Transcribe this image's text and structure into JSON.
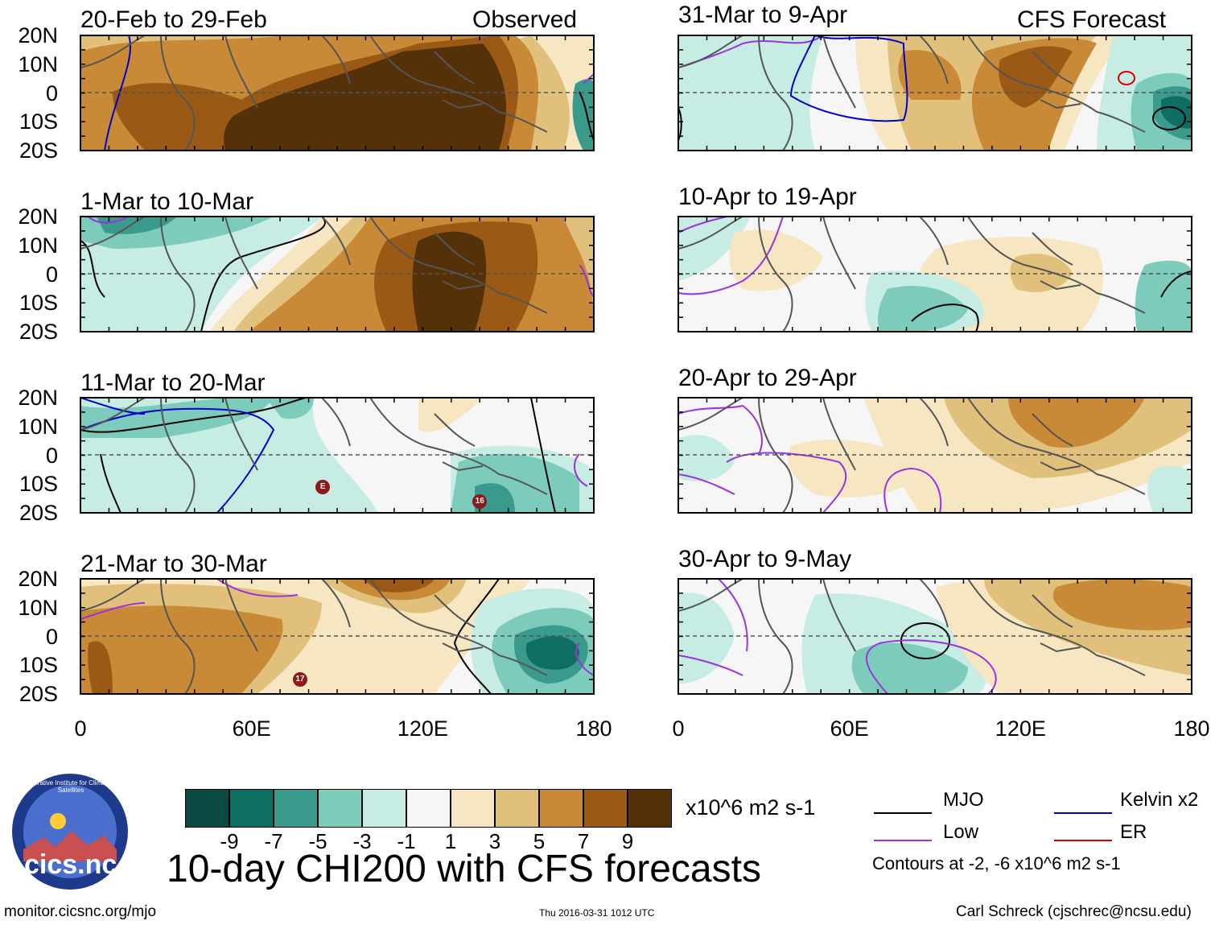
{
  "chart_data": {
    "type": "heatmap",
    "title": "10-day CHI200 with CFS forecasts",
    "variable": "CHI200",
    "units": "x10^6 m2 s-1",
    "observed_label": "Observed",
    "forecast_label": "CFS Forecast",
    "x_ticks": [
      "0",
      "60E",
      "120E",
      "180"
    ],
    "y_ticks": [
      "20N",
      "10N",
      "0",
      "10S",
      "20S"
    ],
    "xlim": [
      0,
      180
    ],
    "ylim": [
      -20,
      20
    ],
    "panels": [
      {
        "period": "20-Feb to 29-Feb",
        "kind": "observed"
      },
      {
        "period": "1-Mar to 10-Mar",
        "kind": "observed"
      },
      {
        "period": "11-Mar to 20-Mar",
        "kind": "observed"
      },
      {
        "period": "21-Mar to 30-Mar",
        "kind": "observed"
      },
      {
        "period": "31-Mar to 9-Apr",
        "kind": "forecast"
      },
      {
        "period": "10-Apr to 19-Apr",
        "kind": "forecast"
      },
      {
        "period": "20-Apr to 29-Apr",
        "kind": "forecast"
      },
      {
        "period": "30-Apr to 9-May",
        "kind": "forecast"
      }
    ],
    "storm_markers": [
      {
        "panel": 2,
        "label": "E",
        "lon": 85,
        "lat": -11
      },
      {
        "panel": 2,
        "label": "16",
        "lon": 140,
        "lat": -16
      },
      {
        "panel": 3,
        "label": "17",
        "lon": 77,
        "lat": -15
      }
    ],
    "colorbar": {
      "tick_labels": [
        "-9",
        "-7",
        "-5",
        "-3",
        "-1",
        "1",
        "3",
        "5",
        "7",
        "9"
      ],
      "colors": [
        "#0a4a42",
        "#0f6e62",
        "#3a9a8c",
        "#7ccbbb",
        "#c6ece3",
        "#f6f6f6",
        "#f6e6c2",
        "#e1c07c",
        "#c88a36",
        "#9a5a16",
        "#55310a"
      ]
    },
    "contour_legend": [
      {
        "label": "MJO",
        "color": "#000000"
      },
      {
        "label": "Kelvin x2",
        "color": "#0000cc"
      },
      {
        "label": "Low",
        "color": "#9933dd"
      },
      {
        "label": "ER",
        "color": "#dd0000"
      }
    ],
    "contour_note": "Contours at -2, -6 x10^6 m2 s-1"
  },
  "logo": {
    "text": "cics.nc",
    "ring_text": "Cooperative Institute for Climate and Satellites"
  },
  "footer": {
    "url": "monitor.cicsnc.org/mjo",
    "timestamp": "Thu 2016-03-31 1012 UTC",
    "author": "Carl Schreck (cjschrec@ncsu.edu)"
  }
}
